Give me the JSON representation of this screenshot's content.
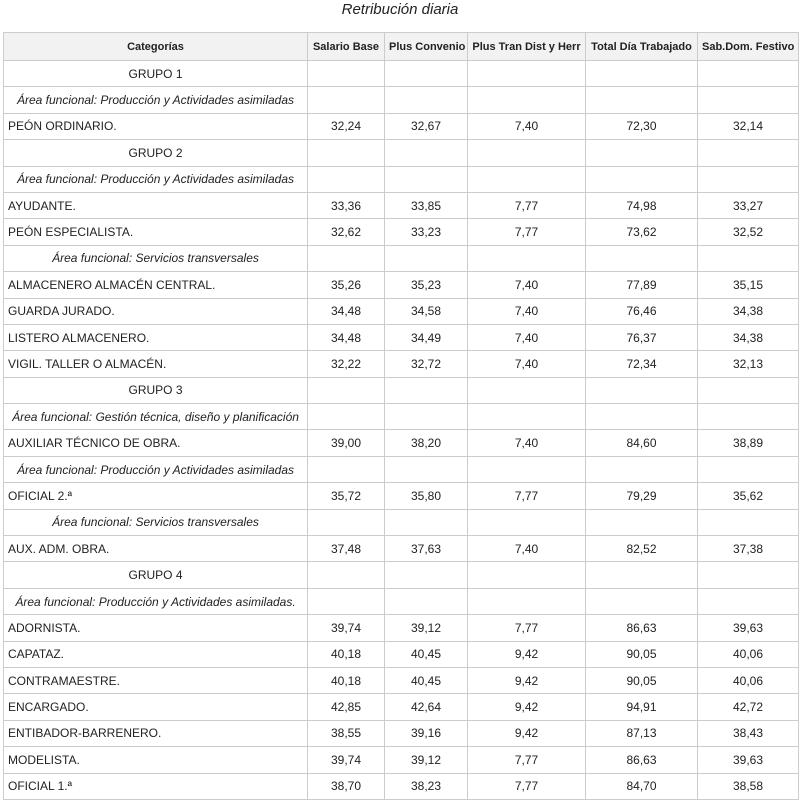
{
  "caption": "Retribución diaria",
  "header": [
    "Categorías",
    "Salario Base",
    "Plus Convenio",
    "Plus Tran Dist y Herr",
    "Total Día Trabajado",
    "Sab.Dom. Festivo"
  ],
  "groups": [
    {
      "title": "GRUPO 1",
      "areas": [
        {
          "title": "Área funcional: Producción y Actividades asimiladas",
          "rows": [
            [
              "PEÓN ORDINARIO.",
              "32,24",
              "32,67",
              "7,40",
              "72,30",
              "32,14"
            ]
          ]
        }
      ]
    },
    {
      "title": "GRUPO 2",
      "areas": [
        {
          "title": "Área funcional: Producción y Actividades asimiladas",
          "rows": [
            [
              "AYUDANTE.",
              "33,36",
              "33,85",
              "7,77",
              "74,98",
              "33,27"
            ],
            [
              "PEÓN ESPECIALISTA.",
              "32,62",
              "33,23",
              "7,77",
              "73,62",
              "32,52"
            ]
          ]
        },
        {
          "title": "Área funcional: Servicios transversales",
          "rows": [
            [
              "ALMACENERO ALMACÉN CENTRAL.",
              "35,26",
              "35,23",
              "7,40",
              "77,89",
              "35,15"
            ],
            [
              "GUARDA JURADO.",
              "34,48",
              "34,58",
              "7,40",
              "76,46",
              "34,38"
            ],
            [
              "LISTERO ALMACENERO.",
              "34,48",
              "34,49",
              "7,40",
              "76,37",
              "34,38"
            ],
            [
              "VIGIL. TALLER O ALMACÉN.",
              "32,22",
              "32,72",
              "7,40",
              "72,34",
              "32,13"
            ]
          ]
        }
      ]
    },
    {
      "title": "GRUPO 3",
      "areas": [
        {
          "title": "Área funcional: Gestión técnica, diseño y planificación",
          "rows": [
            [
              "AUXILIAR TÉCNICO DE OBRA.",
              "39,00",
              "38,20",
              "7,40",
              "84,60",
              "38,89"
            ]
          ]
        },
        {
          "title": "Área funcional: Producción y Actividades asimiladas",
          "rows": [
            [
              "OFICIAL 2.ª",
              "35,72",
              "35,80",
              "7,77",
              "79,29",
              "35,62"
            ]
          ]
        },
        {
          "title": "Área funcional: Servicios transversales",
          "rows": [
            [
              "AUX. ADM. OBRA.",
              "37,48",
              "37,63",
              "7,40",
              "82,52",
              "37,38"
            ]
          ]
        }
      ]
    },
    {
      "title": "GRUPO 4",
      "areas": [
        {
          "title": "Área funcional: Producción y Actividades asimiladas.",
          "rows": [
            [
              "ADORNISTA.",
              "39,74",
              "39,12",
              "7,77",
              "86,63",
              "39,63"
            ],
            [
              "CAPATAZ.",
              "40,18",
              "40,45",
              "9,42",
              "90,05",
              "40,06"
            ],
            [
              "CONTRAMAESTRE.",
              "40,18",
              "40,45",
              "9,42",
              "90,05",
              "40,06"
            ],
            [
              "ENCARGADO.",
              "42,85",
              "42,64",
              "9,42",
              "94,91",
              "42,72"
            ],
            [
              "ENTIBADOR-BARRENERO.",
              "38,55",
              "39,16",
              "9,42",
              "87,13",
              "38,43"
            ],
            [
              "MODELISTA.",
              "39,74",
              "39,12",
              "7,77",
              "86,63",
              "39,63"
            ],
            [
              "OFICIAL 1.ª",
              "38,70",
              "38,23",
              "7,77",
              "84,70",
              "38,58"
            ]
          ]
        }
      ]
    }
  ]
}
